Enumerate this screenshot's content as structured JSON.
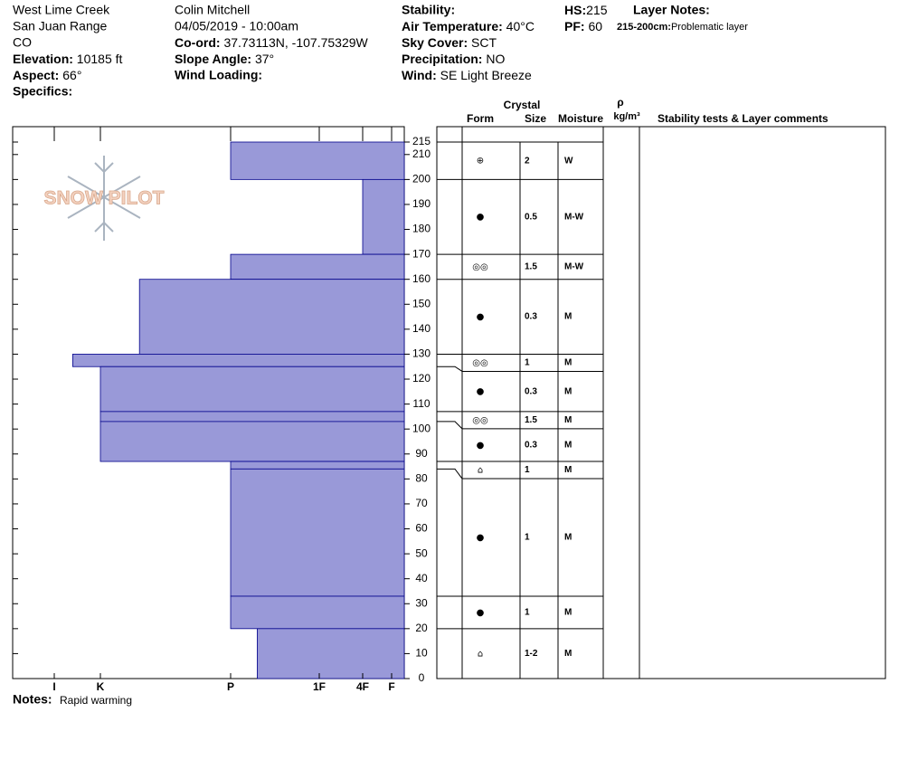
{
  "header": {
    "site": "West Lime Creek",
    "range": "San Juan Range",
    "state": "CO",
    "elevation": {
      "label": "Elevation:",
      "value": "10185 ft"
    },
    "aspect": {
      "label": "Aspect:",
      "value": "66°"
    },
    "specifics": {
      "label": "Specifics:"
    },
    "observer": "Colin Mitchell",
    "datetime": "04/05/2019 - 10:00am",
    "coord": {
      "label": "Co-ord:",
      "value": "37.73113N, -107.75329W"
    },
    "slope": {
      "label": "Slope Angle:",
      "value": "37°"
    },
    "wind_loading": {
      "label": "Wind Loading:"
    },
    "stability": {
      "label": "Stability:"
    },
    "air_temp": {
      "label": "Air Temperature:",
      "value": "40°C"
    },
    "sky": {
      "label": "Sky Cover:",
      "value": "SCT"
    },
    "precip": {
      "label": "Precipitation:",
      "value": "NO"
    },
    "wind": {
      "label": "Wind:",
      "value": "SE Light Breeze"
    },
    "hs": {
      "label": "HS:",
      "value": 215
    },
    "pf": {
      "label": "PF:",
      "value": 60
    },
    "layer_notes": {
      "label": "Layer Notes:",
      "items": [
        {
          "range": "215-200cm:",
          "text": "Problematic layer"
        }
      ]
    }
  },
  "logo": "SNOW PILOT",
  "columns": {
    "crystal": "Crystal",
    "form": "Form",
    "size": "Size",
    "moisture": "Moisture",
    "rho": "ρ",
    "density": "kg/m³",
    "comments": "Stability tests & Layer comments"
  },
  "notes": {
    "label": "Notes:",
    "text": "Rapid warming"
  },
  "chart_data": {
    "type": "snow-profile",
    "ylim": [
      0,
      215
    ],
    "yticks": [
      0,
      10,
      20,
      30,
      40,
      50,
      60,
      70,
      80,
      90,
      100,
      110,
      120,
      130,
      140,
      150,
      160,
      170,
      180,
      190,
      200,
      210,
      215
    ],
    "xlim": [
      7,
      0.5
    ],
    "xticks": [
      {
        "value": 6,
        "label": "I"
      },
      {
        "value": 5,
        "label": "K"
      },
      {
        "value": 4,
        "label": "P"
      },
      {
        "value": 3,
        "label": "1F"
      },
      {
        "value": 2,
        "label": "4F"
      },
      {
        "value": 1,
        "label": "F"
      }
    ],
    "color": "#9999d8",
    "layers": [
      {
        "top": 215,
        "bottom": 200,
        "hardness": 4,
        "form": "⊕",
        "size": 2,
        "moisture": "W"
      },
      {
        "top": 200,
        "bottom": 170,
        "hardness": 2,
        "form": "●",
        "size": 0.5,
        "moisture": "M-W"
      },
      {
        "top": 170,
        "bottom": 160,
        "hardness": 4,
        "form": "◎◎",
        "size": 1.5,
        "moisture": "M-W"
      },
      {
        "top": 160,
        "bottom": 130,
        "hardness": 4.7,
        "form": "●",
        "size": 0.3,
        "moisture": "M"
      },
      {
        "top": 130,
        "bottom": 125,
        "hardness": 5.6,
        "form": "◎◎",
        "size": 1,
        "moisture": "M"
      },
      {
        "top": 125,
        "bottom": 107,
        "hardness": 5,
        "form": "●",
        "size": 0.3,
        "moisture": "M"
      },
      {
        "top": 107,
        "bottom": 103,
        "hardness": 5,
        "form": "◎◎",
        "size": 1.5,
        "moisture": "M"
      },
      {
        "top": 103,
        "bottom": 87,
        "hardness": 5,
        "form": "●",
        "size": 0.3,
        "moisture": "M"
      },
      {
        "top": 87,
        "bottom": 84,
        "hardness": 4,
        "form": "⌂",
        "size": 1,
        "moisture": "M"
      },
      {
        "top": 84,
        "bottom": 33,
        "hardness": 4,
        "form": "●",
        "size": 1,
        "moisture": "M"
      },
      {
        "top": 33,
        "bottom": 20,
        "hardness": 4,
        "form": "●",
        "size": 1,
        "moisture": "M"
      },
      {
        "top": 20,
        "bottom": 0,
        "hardness": 3.7,
        "form": "⌂",
        "size": "1-2",
        "moisture": "M"
      }
    ]
  }
}
